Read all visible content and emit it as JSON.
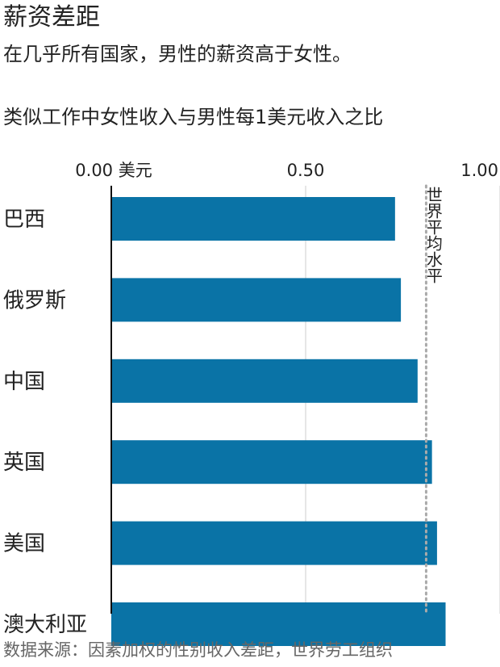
{
  "header": {
    "title": "薪资差距",
    "subtitle": "在几乎所有国家，男性的薪资高于女性。",
    "chart_heading": "类似工作中女性收入与男性每1美元收入之比"
  },
  "source": "数据来源：因素加权的性别收入差距，世界劳工组织",
  "colors": {
    "bar": "#0a73a6",
    "grid": "#cccccc",
    "reference": "#aaaaaa",
    "text": "#222222"
  },
  "chart_data": {
    "type": "bar",
    "orientation": "horizontal",
    "categories": [
      "巴西",
      "俄罗斯",
      "中国",
      "英国",
      "美国",
      "澳大利亚"
    ],
    "values": [
      0.73,
      0.745,
      0.788,
      0.825,
      0.838,
      0.86
    ],
    "xlim": [
      0,
      1.0
    ],
    "xticks": [
      0,
      0.5,
      1.0
    ],
    "xtick_labels": [
      "0.00 美元",
      "0.50",
      "1.00"
    ],
    "reference_line": {
      "value": 0.81,
      "label": "世界平均水平"
    },
    "grid": true
  }
}
